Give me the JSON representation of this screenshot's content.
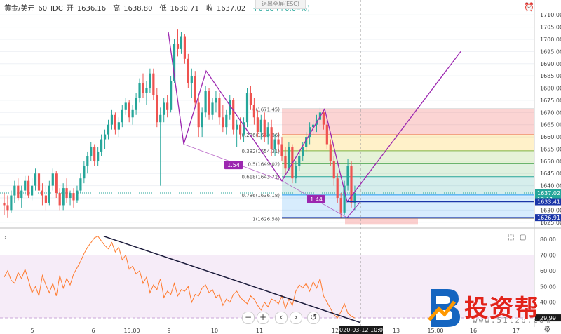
{
  "header": {
    "symbol": "黄金/美元",
    "interval": "60",
    "exchange": "IDC",
    "open_label": "开",
    "open": "1636.16",
    "high_label": "高",
    "high": "1638.80",
    "low_label": "低",
    "low": "1630.71",
    "close_label": "收",
    "close": "1637.02",
    "change": "+0.68 (+0.04%)"
  },
  "exit_fullscreen": "退出全屏(ESC)",
  "colors": {
    "up": "#26a69a",
    "down": "#ef5350",
    "drawing": "#9c27b0",
    "rsi": "#ff7b2e",
    "trend": "#1a1a3a",
    "level_line": "#1a35a8"
  },
  "icons": [
    "bell-icon",
    "expand-icon",
    "settings-icon",
    "minus-icon",
    "plus-icon",
    "chevron-left-icon",
    "chevron-right-icon",
    "reset-icon"
  ],
  "chart_data": [
    {
      "type": "candlestick",
      "title": "黄金/美元 · 60 · IDC",
      "y_axis": {
        "ticks": [
          "1710.00",
          "1705.00",
          "1700.00",
          "1695.00",
          "1690.00",
          "1685.00",
          "1680.00",
          "1675.00",
          "1670.00",
          "1665.00",
          "1660.00",
          "1655.00",
          "1650.00",
          "1645.00",
          "1640.00",
          "1635.00",
          "1630.00",
          "1625.00"
        ],
        "range": [
          1623.5,
          1711.5
        ]
      },
      "x_axis": {
        "ticks": [
          "5",
          "6",
          "15:00",
          "9",
          "10",
          "11",
          "12",
          "13",
          "15:00",
          "16",
          "17"
        ],
        "cursor_label": "2020-03-12 10:00"
      },
      "price_labels": [
        {
          "text": "1637.02",
          "price": 1637.02,
          "color": "#26a69a"
        },
        {
          "text": "13:11",
          "price": 1634.2,
          "color": "#26a69a"
        },
        {
          "text": "1633.41",
          "price": 1633.41,
          "color": "#1a35a8"
        },
        {
          "text": "1626.91",
          "price": 1626.91,
          "color": "#1a35a8"
        }
      ],
      "fibonacci": [
        {
          "label": "0(1671.45)",
          "price": 1671.45
        },
        {
          "label": "0.236(1660.86)",
          "price": 1660.86
        },
        {
          "label": "0.382(1654.31)",
          "price": 1654.31
        },
        {
          "label": "0.5(1649.02)",
          "price": 1649.02
        },
        {
          "label": "0.618(1643.72)",
          "price": 1643.72
        },
        {
          "label": "0.786(1636.18)",
          "price": 1636.18
        },
        {
          "label": "1(1626.58)",
          "price": 1626.58
        }
      ],
      "ratio_labels": [
        "1.54",
        "1.44"
      ],
      "series": [
        {
          "ohlc": [
            [
              1633,
              1637,
              1628,
              1632
            ],
            [
              1632,
              1636,
              1627,
              1630
            ],
            [
              1630,
              1638,
              1629,
              1636
            ],
            [
              1636,
              1642,
              1633,
              1640
            ],
            [
              1640,
              1643,
              1634,
              1635
            ],
            [
              1635,
              1640,
              1631,
              1638
            ],
            [
              1638,
              1644,
              1636,
              1642
            ],
            [
              1642,
              1644,
              1635,
              1636
            ],
            [
              1636,
              1643,
              1634,
              1640
            ],
            [
              1640,
              1647,
              1638,
              1645
            ],
            [
              1645,
              1646,
              1636,
              1638
            ],
            [
              1638,
              1641,
              1632,
              1636
            ],
            [
              1636,
              1640,
              1630,
              1633
            ],
            [
              1633,
              1642,
              1632,
              1640
            ],
            [
              1640,
              1647,
              1638,
              1645
            ],
            [
              1645,
              1646,
              1635,
              1637
            ],
            [
              1637,
              1639,
              1630,
              1632
            ],
            [
              1632,
              1641,
              1630,
              1639
            ],
            [
              1639,
              1643,
              1633,
              1635
            ],
            [
              1635,
              1638,
              1632,
              1637
            ],
            [
              1637,
              1639,
              1631,
              1634
            ],
            [
              1634,
              1640,
              1633,
              1638
            ],
            [
              1638,
              1645,
              1637,
              1643
            ],
            [
              1643,
              1650,
              1641,
              1648
            ],
            [
              1648,
              1654,
              1645,
              1652
            ],
            [
              1652,
              1658,
              1650,
              1656
            ],
            [
              1656,
              1657,
              1648,
              1650
            ],
            [
              1650,
              1656,
              1648,
              1654
            ],
            [
              1654,
              1661,
              1652,
              1659
            ],
            [
              1659,
              1663,
              1655,
              1661
            ],
            [
              1661,
              1667,
              1659,
              1665
            ],
            [
              1665,
              1671,
              1663,
              1669
            ],
            [
              1669,
              1670,
              1661,
              1663
            ],
            [
              1663,
              1668,
              1660,
              1666
            ],
            [
              1666,
              1673,
              1664,
              1671
            ],
            [
              1671,
              1676,
              1669,
              1674
            ],
            [
              1674,
              1675,
              1666,
              1668
            ],
            [
              1668,
              1673,
              1665,
              1671
            ],
            [
              1671,
              1678,
              1669,
              1676
            ],
            [
              1676,
              1684,
              1674,
              1682
            ],
            [
              1682,
              1686,
              1676,
              1678
            ],
            [
              1678,
              1683,
              1673,
              1680
            ],
            [
              1680,
              1688,
              1678,
              1686
            ],
            [
              1686,
              1688,
              1675,
              1677
            ],
            [
              1677,
              1680,
              1664,
              1666
            ],
            [
              1666,
              1672,
              1640,
              1669
            ],
            [
              1669,
              1676,
              1666,
              1674
            ],
            [
              1674,
              1677,
              1668,
              1671
            ],
            [
              1671,
              1685,
              1670,
              1683
            ],
            [
              1683,
              1700,
              1682,
              1698
            ],
            [
              1698,
              1704,
              1693,
              1696
            ],
            [
              1696,
              1703,
              1694,
              1701
            ],
            [
              1701,
              1702,
              1690,
              1692
            ],
            [
              1692,
              1694,
              1680,
              1682
            ],
            [
              1682,
              1688,
              1676,
              1685
            ],
            [
              1685,
              1687,
              1672,
              1674
            ],
            [
              1674,
              1677,
              1660,
              1664
            ],
            [
              1664,
              1672,
              1660,
              1670
            ],
            [
              1670,
              1681,
              1668,
              1679
            ],
            [
              1679,
              1680,
              1667,
              1669
            ],
            [
              1669,
              1676,
              1667,
              1674
            ],
            [
              1674,
              1679,
              1670,
              1676
            ],
            [
              1676,
              1678,
              1665,
              1668
            ],
            [
              1668,
              1673,
              1662,
              1664
            ],
            [
              1664,
              1671,
              1661,
              1669
            ],
            [
              1669,
              1677,
              1667,
              1675
            ],
            [
              1675,
              1676,
              1661,
              1663
            ],
            [
              1663,
              1667,
              1656,
              1665
            ],
            [
              1665,
              1668,
              1659,
              1661
            ],
            [
              1661,
              1668,
              1658,
              1666
            ],
            [
              1666,
              1680,
              1664,
              1678
            ],
            [
              1678,
              1681,
              1671,
              1673
            ],
            [
              1673,
              1676,
              1665,
              1668
            ],
            [
              1668,
              1671,
              1660,
              1662
            ],
            [
              1662,
              1669,
              1659,
              1667
            ],
            [
              1667,
              1670,
              1658,
              1660
            ],
            [
              1660,
              1666,
              1657,
              1664
            ],
            [
              1664,
              1667,
              1652,
              1655
            ],
            [
              1655,
              1661,
              1652,
              1659
            ],
            [
              1659,
              1662,
              1654,
              1657
            ],
            [
              1657,
              1660,
              1650,
              1652
            ],
            [
              1652,
              1656,
              1645,
              1647
            ],
            [
              1647,
              1658,
              1646,
              1656
            ],
            [
              1656,
              1657,
              1641,
              1643
            ],
            [
              1643,
              1650,
              1641,
              1648
            ],
            [
              1648,
              1654,
              1646,
              1652
            ],
            [
              1652,
              1658,
              1650,
              1656
            ],
            [
              1656,
              1662,
              1654,
              1660
            ],
            [
              1660,
              1666,
              1657,
              1664
            ],
            [
              1664,
              1667,
              1661,
              1665
            ],
            [
              1665,
              1669,
              1662,
              1667
            ],
            [
              1667,
              1672,
              1664,
              1670
            ],
            [
              1670,
              1671,
              1663,
              1665
            ],
            [
              1665,
              1667,
              1655,
              1657
            ],
            [
              1657,
              1659,
              1648,
              1650
            ],
            [
              1650,
              1652,
              1640,
              1643
            ],
            [
              1643,
              1645,
              1633,
              1635
            ],
            [
              1635,
              1637,
              1627,
              1629
            ],
            [
              1629,
              1642,
              1628,
              1640
            ],
            [
              1640,
              1651,
              1638,
              1648
            ],
            [
              1648,
              1650,
              1631,
              1633
            ],
            [
              1633,
              1640,
              1630,
              1637
            ]
          ]
        }
      ]
    },
    {
      "type": "line",
      "title": "RSI",
      "y_axis": {
        "ticks": [
          "80.00",
          "70.00",
          "60.00",
          "50.00",
          "40.00"
        ],
        "range": [
          26,
          85
        ]
      },
      "band": [
        30,
        70
      ],
      "last_label": "29.99",
      "series": [
        {
          "name": "RSI",
          "values": [
            56,
            60,
            54,
            52,
            59,
            55,
            61,
            54,
            46,
            50,
            44,
            57,
            51,
            46,
            52,
            44,
            57,
            49,
            55,
            51,
            58,
            62,
            66,
            71,
            75,
            78,
            81,
            82,
            79,
            76,
            74,
            78,
            72,
            75,
            67,
            70,
            61,
            63,
            58,
            60,
            52,
            56,
            46,
            51,
            48,
            55,
            43,
            47,
            45,
            52,
            44,
            48,
            47,
            50,
            40,
            45,
            44,
            49,
            51,
            46,
            48,
            43,
            45,
            38,
            42,
            40,
            45,
            47,
            43,
            41,
            39,
            44,
            42,
            38,
            35,
            40,
            37,
            42,
            41,
            39,
            44,
            36,
            42,
            38,
            47,
            51,
            49,
            52,
            47,
            53,
            49,
            55,
            44,
            40,
            36,
            32,
            30,
            34,
            39,
            33,
            31,
            29.99
          ],
          "trend_line_start": 82,
          "trend_line_end": 27
        }
      ]
    }
  ]
}
